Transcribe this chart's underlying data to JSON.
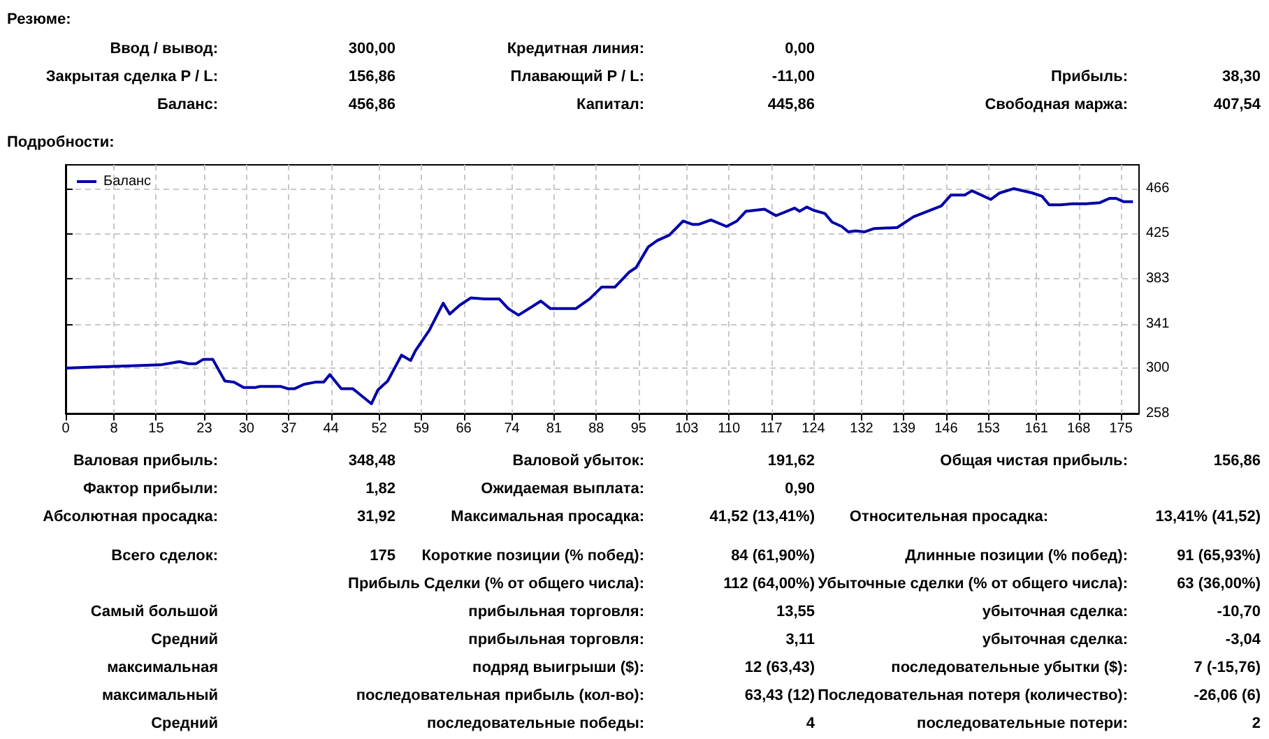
{
  "chart_data": {
    "type": "line",
    "annotations": [
      "Резюме:",
      "Ввод / вывод:",
      "300,00",
      "Кредитная линия:",
      "0,00",
      "Закрытая сделка P / L:",
      "156,86",
      "Плавающий P / L:",
      "-11,00",
      "Прибыль:",
      "38,30",
      "Баланс:",
      "456,86",
      "Капитал:",
      "445,86",
      "Свободная маржа:",
      "407,54",
      "Подробности:",
      "Валовая прибыль:",
      "348,48",
      "Валовой убыток:",
      "191,62",
      "Общая чистая прибыль:",
      "156,86",
      "Фактор прибыли:",
      "1,82",
      "Ожидаемая выплата:",
      "0,90",
      "Абсолютная просадка:",
      "31,92",
      "Максимальная просадка:",
      "41,52 (13,41%)",
      "Относительная просадка:",
      "13,41% (41,52)",
      "Всего сделок:",
      "175",
      "Короткие позиции (% побед):",
      "84 (61,90%)",
      "Длинные позиции (% побед):",
      "91 (65,93%)",
      "Прибыль Сделки (% от общего числа):",
      "112 (64,00%)",
      "Убыточные сделки (% от общего числа):",
      "63 (36,00%)",
      "Самый большой",
      "прибыльная торговля:",
      "13,55",
      "убыточная сделка:",
      "-10,70",
      "Средний",
      "прибыльная торговля:",
      "3,11",
      "убыточная сделка:",
      "-3,04",
      "максимальная",
      "подряд выигрыши ($):",
      "12 (63,43)",
      "последовательные убытки ($):",
      "7 (-15,76)",
      "максимальный",
      "последовательная прибыль (кол-во):",
      "63,43 (12)",
      "Последовательная потеря (количество):",
      "-26,06 (6)",
      "Средний",
      "последовательные победы:",
      "4",
      "последовательные потери:",
      "2"
    ],
    "series": [
      {
        "name": "Баланс",
        "color": "#0000a8",
        "x": [
          0,
          4.6,
          10,
          15.7,
          18.9,
          20.4,
          21.6,
          22.8,
          24.4,
          26.4,
          27.9,
          29.5,
          31.4,
          32.2,
          35.7,
          36.8,
          38,
          39.5,
          41.4,
          42.8,
          43.8,
          45.7,
          47.6,
          50.7,
          51.8,
          53.4,
          55.7,
          57.2,
          58,
          60.3,
          62.6,
          63.7,
          65.3,
          67.2,
          69.5,
          71.9,
          73.4,
          75.1,
          78.8,
          80.4,
          84.6,
          86.9,
          88.9,
          91.1,
          93.5,
          94.6,
          96.6,
          98.1,
          100.1,
          102.4,
          103.9,
          105,
          107,
          109.6,
          111.3,
          112.8,
          115.9,
          117.8,
          120.9,
          121.7,
          122.9,
          124,
          125.9,
          127.1,
          128.7,
          129.8,
          131,
          132.5,
          134,
          137.9,
          140.6,
          142.9,
          145.2,
          146.8,
          149.1,
          150.3,
          153.4,
          154.9,
          157.2,
          160.3,
          161.9,
          163.1,
          165,
          166.9,
          169.2,
          171.5,
          173.1,
          174.2,
          175.4,
          177
        ],
        "values": [
          300,
          301,
          302,
          303,
          306,
          304,
          304,
          308,
          308,
          288,
          287,
          282,
          282,
          283,
          283,
          281,
          281,
          285,
          287,
          287,
          294,
          281,
          281,
          267,
          280,
          288,
          312,
          307,
          316,
          335,
          360,
          350,
          358,
          365,
          364,
          364,
          355,
          349,
          362,
          355,
          355,
          364,
          375,
          375,
          389,
          393,
          412,
          418,
          423,
          436,
          433,
          433,
          437,
          431,
          436,
          445,
          447,
          441,
          448,
          445,
          449,
          446,
          443,
          435,
          431,
          426,
          427,
          426,
          429,
          430,
          440,
          445,
          450,
          460,
          460,
          464,
          456,
          462,
          466,
          462,
          459,
          451,
          451,
          452,
          452,
          453,
          457,
          457,
          454,
          454
        ]
      }
    ],
    "xlim": [
      0,
      178
    ],
    "xticks": [
      0,
      8,
      15,
      23,
      30,
      37,
      44,
      52,
      59,
      66,
      74,
      81,
      88,
      95,
      103,
      110,
      117,
      124,
      132,
      139,
      146,
      153,
      161,
      168,
      175
    ],
    "ylim": [
      258,
      488
    ],
    "yticks": [
      258,
      300,
      341,
      383,
      425,
      466
    ],
    "grid": true,
    "legend": "top left",
    "marker": "none",
    "line_style": "solid"
  }
}
